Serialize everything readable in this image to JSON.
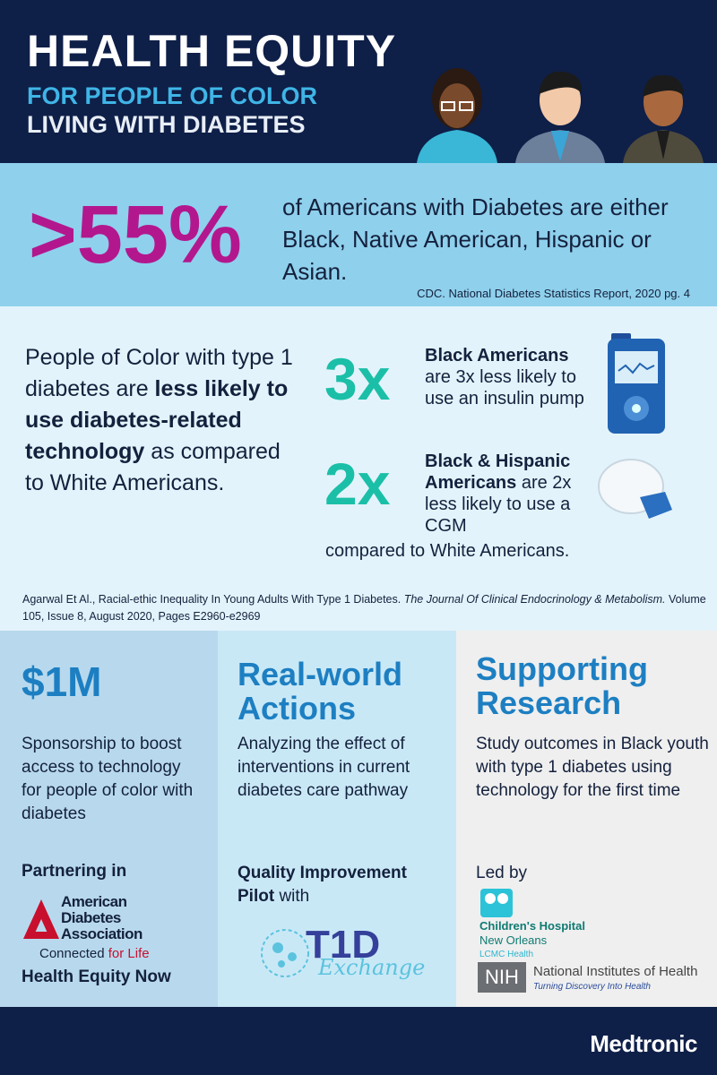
{
  "header": {
    "title": "HEALTH EQUITY",
    "subtitle1": "FOR PEOPLE OF COLOR",
    "subtitle2": "LIVING WITH DIABETES"
  },
  "stat": {
    "value": ">55%",
    "text": "of Americans with Diabetes are either Black, Native American, Hispanic or Asian.",
    "source": "CDC. National Diabetes Statistics Report, 2020 pg. 4"
  },
  "technology": {
    "lead_a": "People of Color with type 1 diabetes are ",
    "lead_bold": "less likely to use diabetes-related technology",
    "lead_b": " as compared to White Americans.",
    "items": [
      {
        "multiplier": "3x",
        "group": "Black Americans",
        "text": "are 3x less likely to use an insulin pump",
        "icon": "insulin-pump-icon"
      },
      {
        "multiplier": "2x",
        "group": "Black & Hispanic Americans",
        "text": "are 2x less likely to use a CGM",
        "icon": "cgm-sensor-icon"
      }
    ],
    "compare": "compared to White Americans.",
    "citation_a": "Agarwal Et Al., Racial-ethic Inequality In Young Adults With Type 1 Diabetes. ",
    "citation_journal": "The Journal Of Clinical Endocrinology & Metabolism.",
    "citation_b": " Volume 105, Issue 8, August 2020, Pages E2960-e2969"
  },
  "columns": [
    {
      "heading": "$1M",
      "body": "Sponsorship to boost access to technology for people of color with diabetes",
      "partner_label": "Partnering in",
      "logo_lines": [
        "American",
        "Diabetes",
        "Association"
      ],
      "logo_tag_a": "Connected ",
      "logo_tag_b": "for Life",
      "footer": "Health Equity Now"
    },
    {
      "heading": "Real-world Actions",
      "body": "Analyzing the effect of interventions in current diabetes care pathway",
      "partner_bold": "Quality Improvement Pilot",
      "partner_rest": " with",
      "logo_main": "T1D",
      "logo_sub": "Exchange"
    },
    {
      "heading": "Supporting Research",
      "body": "Study outcomes in Black youth with type 1 diabetes using technology for the first time",
      "partner_label": "Led by",
      "logo1_lines": [
        "Children's Hospital",
        "New Orleans",
        "LCMC Health"
      ],
      "logo2_mark": "NIH",
      "logo2_name": "National Institutes of Health",
      "logo2_tag": "Turning Discovery Into Health"
    }
  ],
  "footer": {
    "brand": "Medtronic"
  }
}
